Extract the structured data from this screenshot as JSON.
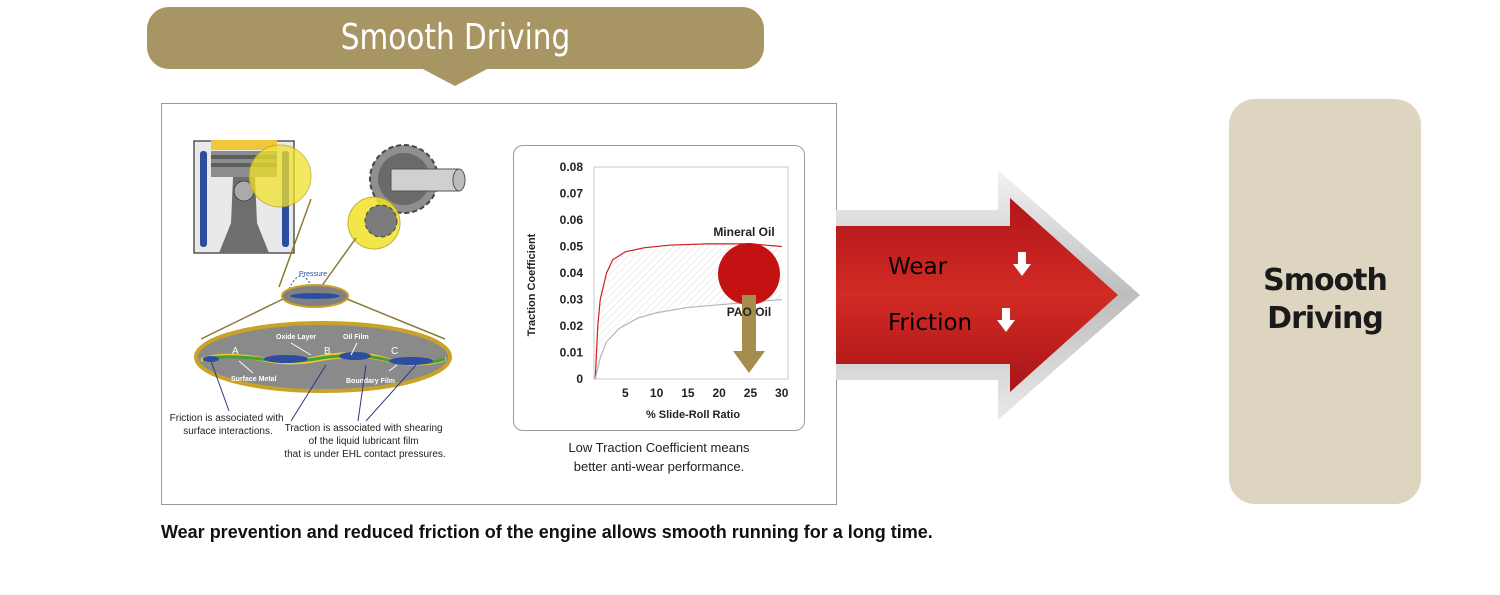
{
  "header": {
    "title": "Smooth Driving"
  },
  "diagram": {
    "pressure_label": "Pressure",
    "oxide_layer": "Oxide Layer",
    "oil_film": "Oil Film",
    "surface_metal": "Surface Metal",
    "boundary_film": "Boundary Film",
    "points": [
      "A",
      "B",
      "C"
    ],
    "friction_note": [
      "Friction is associated with",
      "surface interactions."
    ],
    "traction_note": [
      "Traction is associated with shearing",
      "of the liquid lubricant film",
      "that is under EHL contact pressures."
    ]
  },
  "chart_data": {
    "type": "line",
    "xlabel": "% Slide-Roll Ratio",
    "ylabel": "Traction Coefficient",
    "x_ticks": [
      5,
      10,
      15,
      20,
      25,
      30
    ],
    "y_ticks": [
      "0",
      "0.01",
      "0.02",
      "0.03",
      "0.04",
      "0.05",
      "0.06",
      "0.07",
      "0.08"
    ],
    "xlim": [
      0,
      31
    ],
    "ylim": [
      0,
      0.08
    ],
    "series": [
      {
        "name": "Mineral Oil",
        "color": "#cc1f1f",
        "points": [
          [
            0.2,
            0.0
          ],
          [
            0.6,
            0.02
          ],
          [
            1,
            0.03
          ],
          [
            2,
            0.04
          ],
          [
            3,
            0.045
          ],
          [
            5,
            0.048
          ],
          [
            8,
            0.0495
          ],
          [
            12,
            0.0505
          ],
          [
            18,
            0.051
          ],
          [
            25,
            0.051
          ],
          [
            30,
            0.05
          ]
        ]
      },
      {
        "name": "PAO Oil",
        "color": "#b5b5b5",
        "points": [
          [
            0.2,
            0.0
          ],
          [
            1,
            0.008
          ],
          [
            2,
            0.014
          ],
          [
            4,
            0.019
          ],
          [
            7,
            0.023
          ],
          [
            10,
            0.025
          ],
          [
            15,
            0.027
          ],
          [
            20,
            0.028
          ],
          [
            25,
            0.029
          ],
          [
            30,
            0.03
          ]
        ]
      }
    ],
    "caption": [
      "Low Traction Coefficient means",
      "better anti-wear performance."
    ]
  },
  "arrow": {
    "wear_label": "Wear",
    "friction_label": "Friction",
    "color": "#c8201e"
  },
  "result": {
    "title_line1": "Smooth",
    "title_line2": "Driving",
    "color": "#ddd5bf"
  },
  "footer": {
    "text": "Wear prevention and reduced friction of the engine allows smooth running for a long time."
  },
  "colors": {
    "banner": "#a89564",
    "mineral": "#cc1f1f",
    "pao": "#b5b5b5"
  }
}
